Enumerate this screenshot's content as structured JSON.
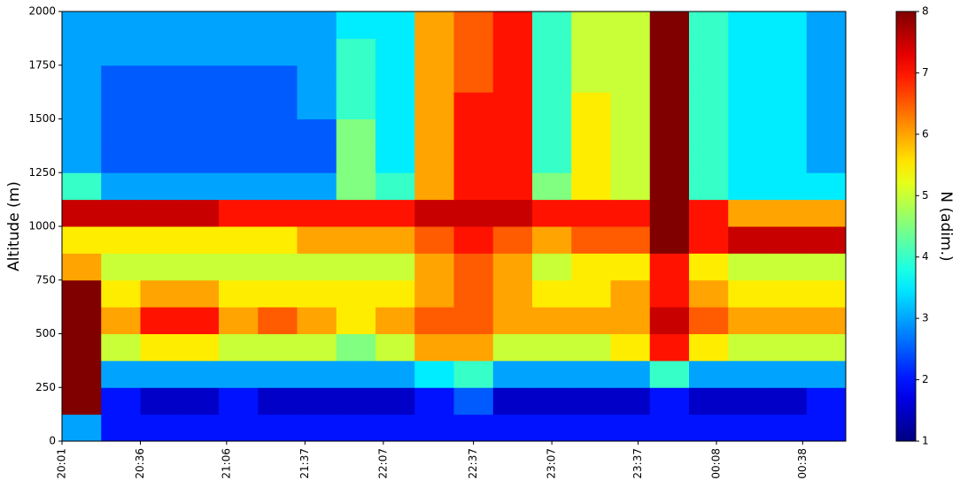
{
  "chart_data": {
    "type": "heatmap",
    "ylabel": "Altitude (m)",
    "colorbar_label": "N (adim.)",
    "colormap": "jet",
    "xlim": [
      0,
      20
    ],
    "xticks": [
      {
        "value": 0,
        "label": "20:01"
      },
      {
        "value": 2,
        "label": "20:36"
      },
      {
        "value": 4.2,
        "label": "21:06"
      },
      {
        "value": 6.2,
        "label": "21:37"
      },
      {
        "value": 8.2,
        "label": "22:07"
      },
      {
        "value": 10.5,
        "label": "22:37"
      },
      {
        "value": 12.5,
        "label": "23:07"
      },
      {
        "value": 14.7,
        "label": "23:37"
      },
      {
        "value": 16.7,
        "label": "00:08"
      },
      {
        "value": 18.9,
        "label": "00:38"
      }
    ],
    "ylim": [
      0,
      2000
    ],
    "yticks": [
      0,
      250,
      500,
      750,
      1000,
      1250,
      1500,
      1750,
      2000
    ],
    "zlim": [
      1,
      8
    ],
    "zticks": [
      1,
      2,
      3,
      4,
      5,
      6,
      7,
      8
    ],
    "values": [
      [
        3,
        2,
        2,
        2,
        2,
        2,
        2,
        2,
        2,
        2,
        2,
        2,
        2,
        2,
        2,
        2,
        2,
        2,
        2,
        2
      ],
      [
        8,
        2,
        1.5,
        1.5,
        2,
        1.5,
        1.5,
        1.5,
        1.5,
        2,
        2.5,
        1.5,
        1.5,
        1.5,
        1.5,
        2,
        1.5,
        1.5,
        1.5,
        2
      ],
      [
        8,
        3,
        3,
        3,
        3,
        3,
        3,
        3,
        3,
        3.5,
        4,
        3,
        3,
        3,
        3,
        4,
        3,
        3,
        3,
        3
      ],
      [
        8,
        5,
        5.5,
        5.5,
        5,
        5,
        5,
        4.5,
        5,
        6,
        6,
        5,
        5,
        5,
        5.5,
        7,
        5.5,
        5,
        5,
        5
      ],
      [
        8,
        6,
        7,
        7,
        6,
        6.5,
        6,
        5.5,
        6,
        6.5,
        6.5,
        6,
        6,
        6,
        6,
        7.5,
        6.5,
        6,
        6,
        6
      ],
      [
        8,
        5.5,
        6,
        6,
        5.5,
        5.5,
        5.5,
        5.5,
        5.5,
        6,
        6.5,
        6,
        5.5,
        5.5,
        6,
        7,
        6,
        5.5,
        5.5,
        5.5
      ],
      [
        6,
        5,
        5,
        5,
        5,
        5,
        5,
        5,
        5,
        6,
        6.5,
        6,
        5,
        5.5,
        5.5,
        7,
        5.5,
        5,
        5,
        5
      ],
      [
        5.5,
        5.5,
        5.5,
        5.5,
        5.5,
        5.5,
        6,
        6,
        6,
        6.5,
        7,
        6.5,
        6,
        6.5,
        6.5,
        8,
        7,
        7.5,
        7.5,
        7.5
      ],
      [
        7.5,
        7.5,
        7.5,
        7.5,
        7,
        7,
        7,
        7,
        7,
        7.5,
        7.5,
        7.5,
        7,
        7,
        7,
        8,
        7,
        6,
        6,
        6
      ],
      [
        4,
        3,
        3,
        3,
        3,
        3,
        3,
        4.5,
        4,
        6,
        7,
        7,
        4.5,
        5.5,
        5,
        8,
        4,
        3.5,
        3.5,
        3.5
      ],
      [
        3,
        2.5,
        2.5,
        2.5,
        2.5,
        2.5,
        2.5,
        4.5,
        3.5,
        6,
        7,
        7,
        4,
        5.5,
        5,
        8,
        4,
        3.5,
        3.5,
        3
      ],
      [
        3,
        2.5,
        2.5,
        2.5,
        2.5,
        2.5,
        2.5,
        4.5,
        3.5,
        6,
        7,
        7,
        4,
        5.5,
        5,
        8,
        4,
        3.5,
        3.5,
        3
      ],
      [
        3,
        2.5,
        2.5,
        2.5,
        2.5,
        2.5,
        3,
        4,
        3.5,
        6,
        7,
        7,
        4,
        5.5,
        5,
        8,
        4,
        3.5,
        3.5,
        3
      ],
      [
        3,
        2.5,
        2.5,
        2.5,
        2.5,
        2.5,
        3,
        4,
        3.5,
        6,
        6.5,
        7,
        4,
        5,
        5,
        8,
        4,
        3.5,
        3.5,
        3
      ],
      [
        3,
        3,
        3,
        3,
        3,
        3,
        3,
        4,
        3.5,
        6,
        6.5,
        7,
        4,
        5,
        5,
        8,
        4,
        3.5,
        3.5,
        3
      ],
      [
        3,
        3,
        3,
        3,
        3,
        3,
        3,
        3.5,
        3.5,
        6,
        6.5,
        7,
        4,
        5,
        5,
        8,
        4,
        3.5,
        3.5,
        3
      ]
    ]
  }
}
